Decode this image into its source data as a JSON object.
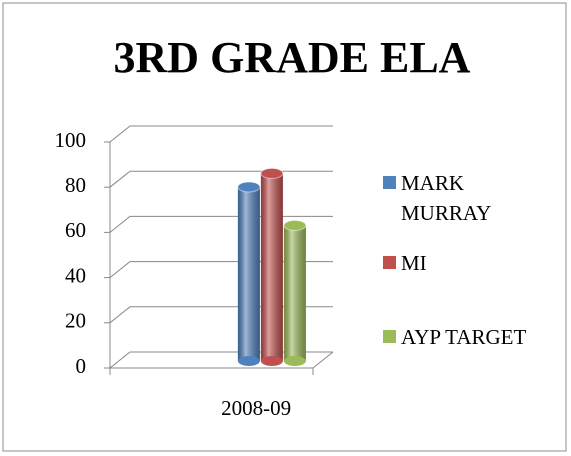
{
  "chart_data": {
    "type": "bar3d",
    "title": "3RD GRADE ELA",
    "categories": [
      "2008-09"
    ],
    "series": [
      {
        "name": "MARK MURRAY",
        "color": "#4f81bd",
        "values": [
          77
        ]
      },
      {
        "name": "MI",
        "color": "#c0504d",
        "values": [
          83
        ]
      },
      {
        "name": "AYP TARGET",
        "color": "#9bbb59",
        "values": [
          60
        ]
      }
    ],
    "ylim": [
      0,
      100
    ],
    "yticks": [
      0,
      20,
      40,
      60,
      80,
      100
    ],
    "grid": true,
    "legend": "right"
  }
}
